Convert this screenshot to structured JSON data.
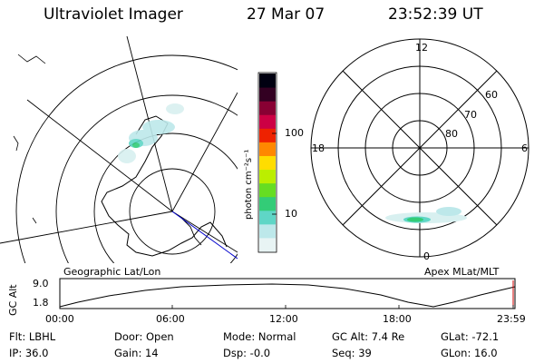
{
  "header": {
    "instrument": "Ultraviolet Imager",
    "date": "27 Mar 07",
    "time": "23:52:39 UT"
  },
  "left_map": {
    "caption": "Geographic Lat/Lon"
  },
  "right_map": {
    "caption": "Apex MLat/MLT",
    "mlt_top": "12",
    "mlt_left": "18",
    "mlt_right": "6",
    "mlt_bottom": "0",
    "lat_60": "60",
    "lat_70": "70",
    "lat_80": "80"
  },
  "colorbar": {
    "unit_label": "photon cm⁻²s⁻¹",
    "ticks": [
      "100",
      "10"
    ],
    "colors": [
      "#e8f4f4",
      "#bde8ea",
      "#5fd6c6",
      "#33cc77",
      "#66dd22",
      "#bbee00",
      "#ffdd00",
      "#ff8800",
      "#ee2200",
      "#cc0044",
      "#880033",
      "#330022",
      "#000011"
    ]
  },
  "orbit_plot": {
    "ylabel": "GC Alt",
    "ymax": "9.0",
    "ymin": "1.8",
    "x_ticks": [
      "00:00",
      "06:00",
      "12:00",
      "18:00",
      "23:59"
    ]
  },
  "status": {
    "flt": "Flt: LBHL",
    "ip": "IP: 36.0",
    "door": "Door: Open",
    "gain": "Gain: 14",
    "mode": "Mode: Normal",
    "dsp": "Dsp:   -0.0",
    "gc_alt": "GC Alt: 7.4 Re",
    "seq": "Seq: 39",
    "glat": "GLat: -72.1",
    "glon": "GLon:  16.0"
  }
}
